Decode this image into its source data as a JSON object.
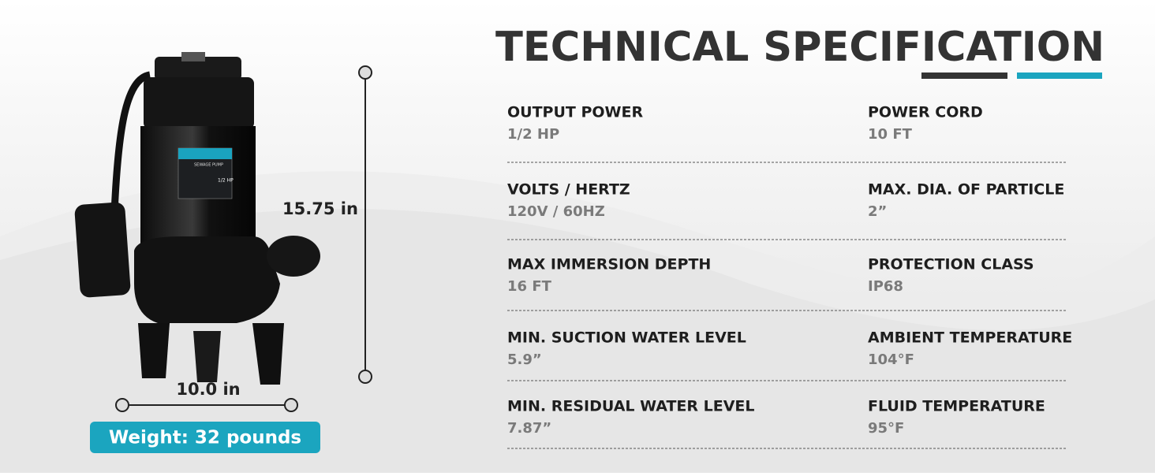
{
  "header": {
    "title": "TECHNICAL SPECIFICATION"
  },
  "product": {
    "label_title": "SEWAGE PUMP",
    "label_power": "1/2 HP"
  },
  "dimensions": {
    "height": "15.75 in",
    "width": "10.0 in",
    "weight": "Weight: 32 pounds"
  },
  "specs": {
    "rows": [
      [
        {
          "label": "OUTPUT POWER",
          "value": "1/2 HP"
        },
        {
          "label": "POWER CORD",
          "value": "10 FT"
        }
      ],
      [
        {
          "label": "VOLTS / HERTZ",
          "value": "120V / 60HZ"
        },
        {
          "label": "MAX. DIA. OF PARTICLE",
          "value": "2”"
        }
      ],
      [
        {
          "label": "MAX IMMERSION DEPTH",
          "value": "16 FT"
        },
        {
          "label": "PROTECTION CLASS",
          "value": "IP68"
        }
      ],
      [
        {
          "label": "MIN. SUCTION WATER LEVEL",
          "value": "5.9”"
        },
        {
          "label": "AMBIENT TEMPERATURE",
          "value": "104°F"
        }
      ],
      [
        {
          "label": "MIN. RESIDUAL WATER LEVEL",
          "value": "7.87”"
        },
        {
          "label": "FLUID TEMPERATURE",
          "value": "95°F"
        }
      ]
    ]
  }
}
